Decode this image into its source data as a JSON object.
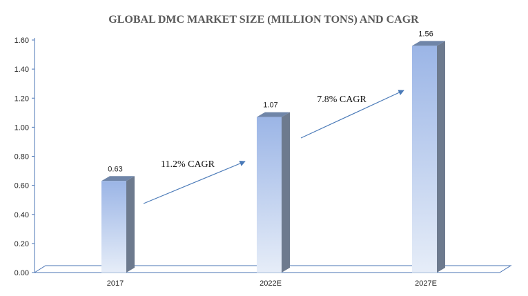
{
  "chart_data": {
    "type": "bar",
    "title": "GLOBAL DMC MARKET SIZE (MILLION TONS) AND CAGR",
    "categories": [
      "2017",
      "2022E",
      "2027E"
    ],
    "values": [
      0.63,
      1.07,
      1.56
    ],
    "value_labels": [
      "0.63",
      "1.07",
      "1.56"
    ],
    "ylim": [
      0,
      1.6
    ],
    "yticks": [
      "0.00",
      "0.20",
      "0.40",
      "0.60",
      "0.80",
      "1.00",
      "1.20",
      "1.40",
      "1.60"
    ],
    "grid": false,
    "annotations": [
      {
        "text": "11.2% CAGR",
        "from": "2017",
        "to": "2022E"
      },
      {
        "text": "7.8% CAGR",
        "from": "2022E",
        "to": "2027E"
      }
    ],
    "colors": {
      "bar_top": "#9bb5e6",
      "bar_bottom": "#e6edf8",
      "bar_side": "#6d7a8e",
      "bar_cap": "#6f85a8",
      "arrow": "#4a7ab8",
      "axis": "#4a74b4"
    }
  }
}
